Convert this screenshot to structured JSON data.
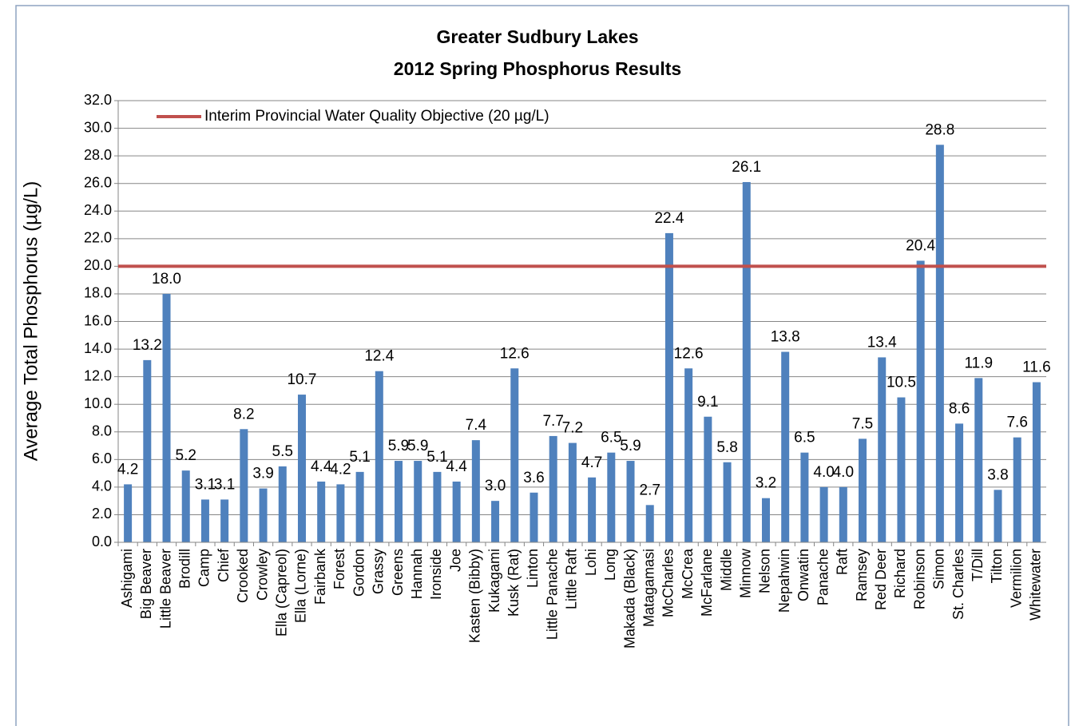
{
  "chart_data": {
    "type": "bar",
    "title": "Greater Sudbury Lakes",
    "subtitle": "2012 Spring Phosphorus Results",
    "ylabel": "Average Total Phosphorus (µg/L)",
    "categories": [
      "Ashigami",
      "Big Beaver",
      "Little Beaver",
      "Brodill",
      "Camp",
      "Chief",
      "Crooked",
      "Crowley",
      "Ella (Capreol)",
      "Ella (Lorne)",
      "Fairbank",
      "Forest",
      "Gordon",
      "Grassy",
      "Greens",
      "Hannah",
      "Ironside",
      "Joe",
      "Kasten (Bibby)",
      "Kukagami",
      "Kusk (Rat)",
      "Linton",
      "Little Panache",
      "Little Raft",
      "Lohi",
      "Long",
      "Makada (Black)",
      "Matagamasi",
      "McCharles",
      "McCrea",
      "McFarlane",
      "Middle",
      "Minnow",
      "Nelson",
      "Nepahwin",
      "Onwatin",
      "Panache",
      "Raft",
      "Ramsey",
      "Red Deer",
      "Richard",
      "Robinson",
      "Simon",
      "St. Charles",
      "T/Dill",
      "Tilton",
      "Vermilion",
      "Whitewater"
    ],
    "values": [
      4.2,
      13.2,
      18,
      5.2,
      3.1,
      3.1,
      8.2,
      3.9,
      5.5,
      10.7,
      4.4,
      4.2,
      5.1,
      12.4,
      5.9,
      5.9,
      5.1,
      4.4,
      7.4,
      3.0,
      12.6,
      3.6,
      7.7,
      7.2,
      4.7,
      6.5,
      5.9,
      2.7,
      22.4,
      12.6,
      9.1,
      5.8,
      26.1,
      3.2,
      13.8,
      6.5,
      4,
      4,
      7.5,
      13.4,
      10.5,
      20.4,
      28.8,
      8.6,
      11.9,
      3.8,
      7.6,
      11.6
    ],
    "value_labels": [
      "4.2",
      "13.2",
      "18.0",
      "5.2",
      "3.1",
      "3.1",
      "8.2",
      "3.9",
      "5.5",
      "10.7",
      "4.4",
      "4.2",
      "5.1",
      "12.4",
      "5.9",
      "5.9",
      "5.1",
      "4.4",
      "7.4",
      "3.0",
      "12.6",
      "3.6",
      "7.7",
      "7.2",
      "4.7",
      "6.5",
      "5.9",
      "2.7",
      "22.4",
      "12.6",
      "9.1",
      "5.8",
      "26.1",
      "3.2",
      "13.8",
      "6.5",
      "4.0",
      "4.0",
      "7.5",
      "13.4",
      "10.5",
      "20.4",
      "28.8",
      "8.6",
      "11.9",
      "3.8",
      "7.6",
      "11.6"
    ],
    "color": "#4f81bd",
    "ylim": [
      0,
      32
    ],
    "yticks": [
      {
        "value": 0,
        "label": "0.0"
      },
      {
        "value": 2,
        "label": "2.0"
      },
      {
        "value": 4,
        "label": "4.0"
      },
      {
        "value": 6,
        "label": "6.0"
      },
      {
        "value": 8,
        "label": "8.0"
      },
      {
        "value": 10,
        "label": "10.0"
      },
      {
        "value": 12,
        "label": "12.0"
      },
      {
        "value": 14,
        "label": "14.0"
      },
      {
        "value": 16,
        "label": "16.0"
      },
      {
        "value": 18,
        "label": "18.0"
      },
      {
        "value": 20,
        "label": "20.0"
      },
      {
        "value": 22,
        "label": "22.0"
      },
      {
        "value": 24,
        "label": "24.0"
      },
      {
        "value": 26,
        "label": "26.0"
      },
      {
        "value": 28,
        "label": "28.0"
      },
      {
        "value": 30,
        "label": "30.0"
      },
      {
        "value": 32,
        "label": "32.0"
      }
    ],
    "grid": true,
    "legend": "top-left",
    "reference_line": {
      "name": "Interim Provincial Water Quality Objective (20 µg/L)",
      "value": 20,
      "color": "#c0504d"
    }
  }
}
